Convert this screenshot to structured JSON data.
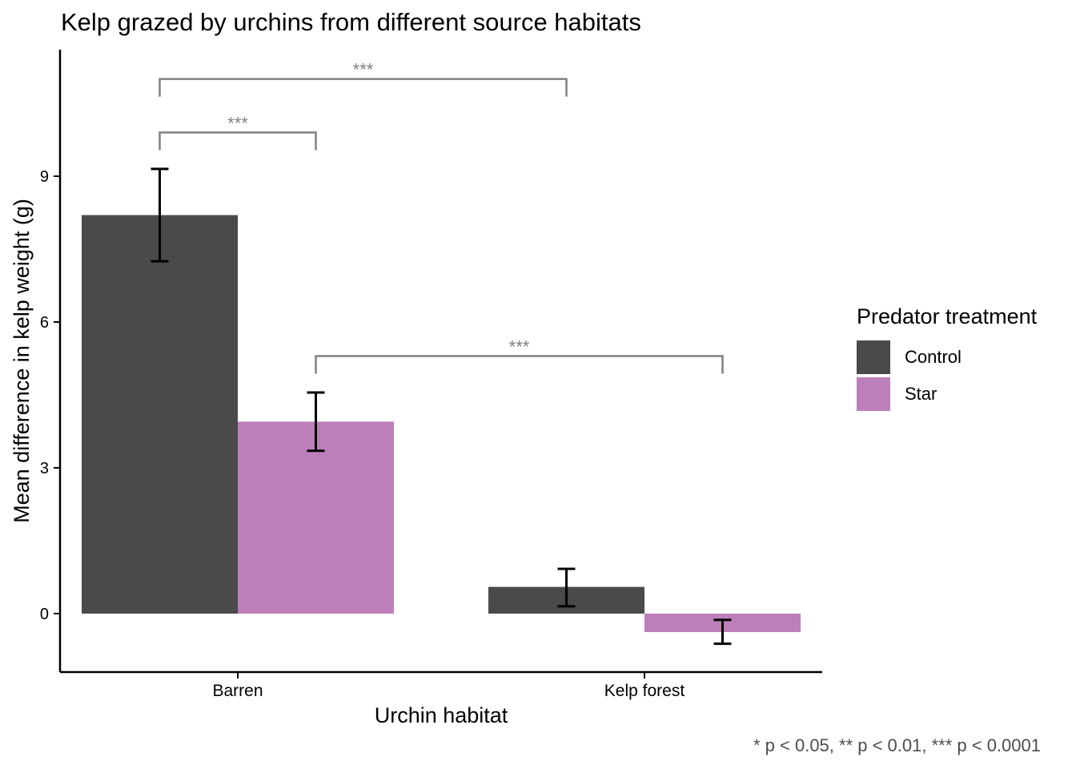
{
  "chart_data": {
    "type": "bar",
    "title": "Kelp grazed by urchins from different source habitats",
    "xlabel": "Urchin habitat",
    "ylabel": "Mean difference in kelp weight (g)",
    "categories": [
      "Barren",
      "Kelp forest"
    ],
    "yticks": [
      0,
      3,
      6,
      9
    ],
    "ylim": [
      -1.2,
      11.6
    ],
    "grid": false,
    "legend": {
      "title": "Predator treatment",
      "placement": "right"
    },
    "series": [
      {
        "name": "Control",
        "color": "#4a4a4a",
        "values": [
          8.2,
          0.55
        ],
        "error_low": [
          7.25,
          0.15
        ],
        "error_high": [
          9.15,
          0.92
        ]
      },
      {
        "name": "Star",
        "color": "#bc7fba",
        "values": [
          3.95,
          -0.38
        ],
        "error_low": [
          3.35,
          -0.62
        ],
        "error_high": [
          4.55,
          -0.13
        ]
      }
    ],
    "annotations": [
      {
        "label": "***",
        "from": [
          "Barren",
          "Control"
        ],
        "to": [
          "Barren",
          "Star"
        ],
        "y": 9.9
      },
      {
        "label": "***",
        "from": [
          "Barren",
          "Control"
        ],
        "to": [
          "Kelp forest",
          "Control"
        ],
        "y": 11.0
      },
      {
        "label": "***",
        "from": [
          "Barren",
          "Star"
        ],
        "to": [
          "Kelp forest",
          "Star"
        ],
        "y": 5.3
      }
    ],
    "caption": "* p < 0.05, ** p < 0.01, *** p < 0.0001"
  }
}
